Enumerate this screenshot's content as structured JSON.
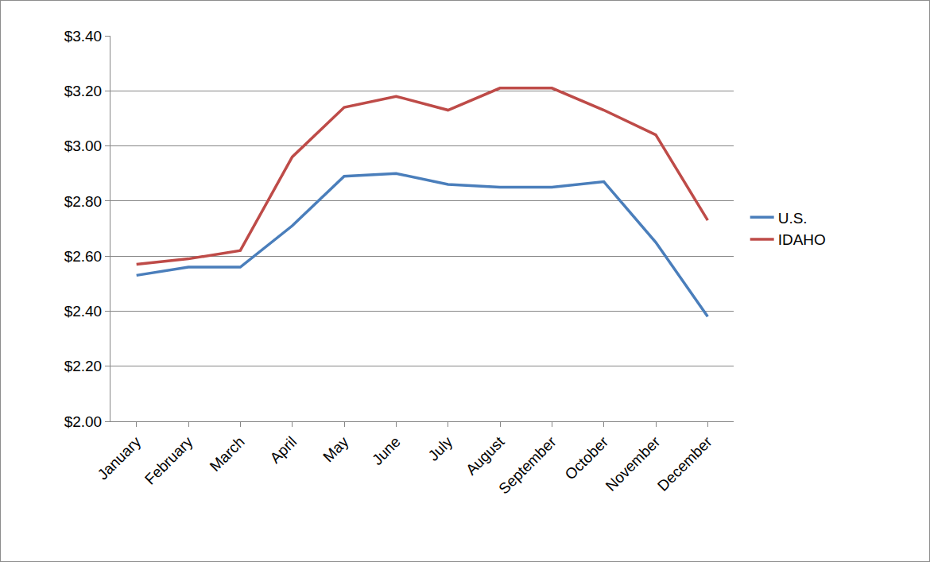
{
  "chart_data": {
    "type": "line",
    "categories": [
      "January",
      "February",
      "March",
      "April",
      "May",
      "June",
      "July",
      "August",
      "September",
      "October",
      "November",
      "December"
    ],
    "series": [
      {
        "name": "U.S.",
        "color": "#4a7ebb",
        "values": [
          2.53,
          2.56,
          2.56,
          2.71,
          2.89,
          2.9,
          2.86,
          2.85,
          2.85,
          2.87,
          2.65,
          2.38
        ]
      },
      {
        "name": "IDAHO",
        "color": "#be4b48",
        "values": [
          2.57,
          2.59,
          2.62,
          2.96,
          3.14,
          3.18,
          3.13,
          3.21,
          3.21,
          3.13,
          3.04,
          2.73
        ]
      }
    ],
    "ylim": [
      2.0,
      3.4
    ],
    "yticks": [
      {
        "value": 2.0,
        "label": "$2.00"
      },
      {
        "value": 2.2,
        "label": "$2.20"
      },
      {
        "value": 2.4,
        "label": "$2.40"
      },
      {
        "value": 2.6,
        "label": "$2.60"
      },
      {
        "value": 2.8,
        "label": "$2.80"
      },
      {
        "value": 3.0,
        "label": "$3.00"
      },
      {
        "value": 3.2,
        "label": "$3.20"
      },
      {
        "value": 3.4,
        "label": "$3.40"
      }
    ],
    "grid": true,
    "legend": "right"
  }
}
